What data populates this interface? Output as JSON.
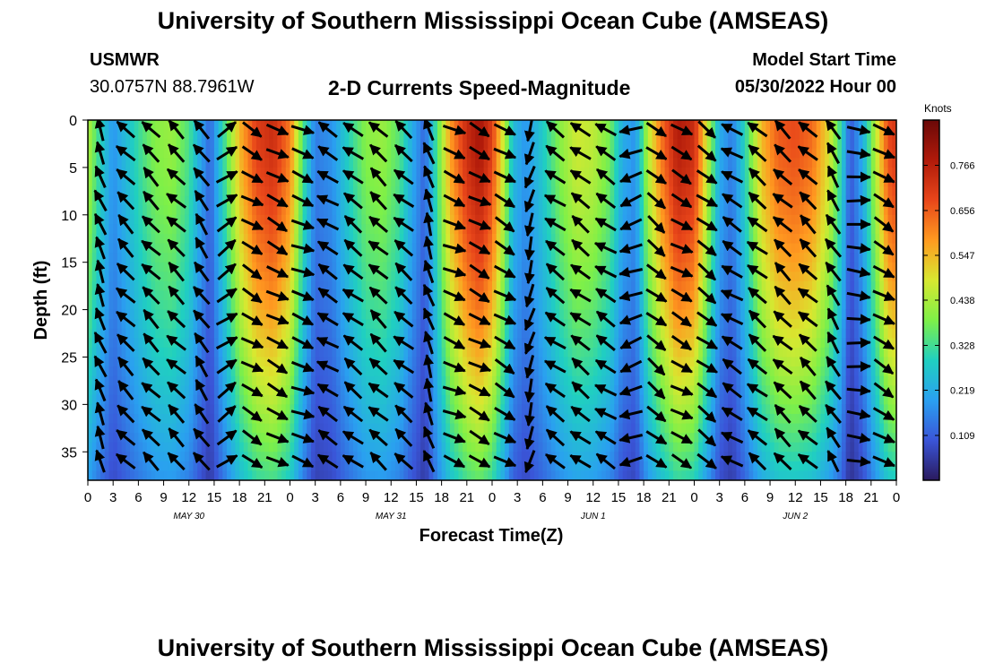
{
  "page": {
    "title": "University of Southern Mississippi Ocean Cube (AMSEAS)",
    "footer_title": "University of Southern Mississippi Ocean Cube (AMSEAS)",
    "station": "USMWR",
    "coords": "30.0757N  88.7961W",
    "subtitle": "2-D Currents Speed-Magnitude",
    "model_start_label": "Model Start Time",
    "model_start_value": "05/30/2022 Hour 00"
  },
  "colors": {
    "scale": [
      "#2a1a5e",
      "#3a55d8",
      "#2aa0f0",
      "#20d0c0",
      "#7ef048",
      "#d8e830",
      "#ff9a20",
      "#e8461a",
      "#b01a0a",
      "#6a0808"
    ]
  },
  "chart_data": {
    "type": "heatmap",
    "title": "2-D Currents Speed-Magnitude",
    "xlabel": "Forecast Time(Z)",
    "ylabel": "Depth (ft)",
    "units": "Knots",
    "xlim_hours": [
      0,
      96
    ],
    "ylim_ft": [
      0,
      38
    ],
    "x_tick_labels": [
      "0",
      "3",
      "6",
      "9",
      "12",
      "15",
      "18",
      "21",
      "0",
      "3",
      "6",
      "9",
      "12",
      "15",
      "18",
      "21",
      "0",
      "3",
      "6",
      "9",
      "12",
      "15",
      "18",
      "21",
      "0",
      "3",
      "6",
      "9",
      "12",
      "15",
      "18",
      "21",
      "0"
    ],
    "y_ticks": [
      0,
      5,
      10,
      15,
      20,
      25,
      30,
      35
    ],
    "date_labels": [
      {
        "label": "MAY 30",
        "hour": 12
      },
      {
        "label": "MAY 31",
        "hour": 36
      },
      {
        "label": "JUN 1",
        "hour": 60
      },
      {
        "label": "JUN 2",
        "hour": 84
      }
    ],
    "colorbar_ticks": [
      "0.766",
      "0.656",
      "0.547",
      "0.438",
      "0.328",
      "0.219",
      "0.109"
    ],
    "colorbar_values": [
      0.766,
      0.656,
      0.547,
      0.438,
      0.328,
      0.219,
      0.109
    ],
    "colorbar_range": [
      0.0,
      0.876
    ],
    "surface_speed_by_hour": [
      [
        0,
        0.45
      ],
      [
        1.5,
        0.3
      ],
      [
        3,
        0.18
      ],
      [
        4.5,
        0.25
      ],
      [
        6,
        0.32
      ],
      [
        8,
        0.4
      ],
      [
        10,
        0.42
      ],
      [
        12,
        0.34
      ],
      [
        13.5,
        0.2
      ],
      [
        14.5,
        0.12
      ],
      [
        16,
        0.3
      ],
      [
        18,
        0.55
      ],
      [
        20,
        0.7
      ],
      [
        22,
        0.74
      ],
      [
        24,
        0.62
      ],
      [
        25.5,
        0.35
      ],
      [
        27,
        0.15
      ],
      [
        29,
        0.18
      ],
      [
        31,
        0.3
      ],
      [
        33,
        0.4
      ],
      [
        35,
        0.42
      ],
      [
        37,
        0.35
      ],
      [
        38.5,
        0.22
      ],
      [
        40,
        0.12
      ],
      [
        41.5,
        0.35
      ],
      [
        43,
        0.58
      ],
      [
        45,
        0.74
      ],
      [
        46.5,
        0.8
      ],
      [
        48,
        0.7
      ],
      [
        49.5,
        0.45
      ],
      [
        50.5,
        0.25
      ],
      [
        52,
        0.18
      ],
      [
        54,
        0.28
      ],
      [
        56,
        0.4
      ],
      [
        58,
        0.48
      ],
      [
        60,
        0.46
      ],
      [
        62,
        0.38
      ],
      [
        63.5,
        0.22
      ],
      [
        65,
        0.18
      ],
      [
        66.5,
        0.45
      ],
      [
        68,
        0.62
      ],
      [
        70,
        0.78
      ],
      [
        72,
        0.74
      ],
      [
        73.5,
        0.48
      ],
      [
        75,
        0.22
      ],
      [
        76.5,
        0.15
      ],
      [
        78,
        0.3
      ],
      [
        80,
        0.55
      ],
      [
        82,
        0.66
      ],
      [
        84,
        0.68
      ],
      [
        86,
        0.64
      ],
      [
        88,
        0.5
      ],
      [
        89.5,
        0.3
      ],
      [
        90.5,
        0.1
      ],
      [
        92,
        0.22
      ],
      [
        93.5,
        0.45
      ],
      [
        95,
        0.68
      ],
      [
        96,
        0.72
      ]
    ],
    "depth_decay_by_hour": [
      [
        0,
        0.55
      ],
      [
        24,
        0.55
      ],
      [
        48,
        0.55
      ],
      [
        72,
        0.6
      ],
      [
        96,
        0.6
      ]
    ],
    "current_direction_deg_by_hour": [
      [
        0,
        335
      ],
      [
        2,
        340
      ],
      [
        4,
        320
      ],
      [
        6,
        300
      ],
      [
        8,
        320
      ],
      [
        10,
        315
      ],
      [
        12,
        310
      ],
      [
        14,
        330
      ],
      [
        15,
        350
      ],
      [
        18,
        120
      ],
      [
        21,
        120
      ],
      [
        24,
        115
      ],
      [
        26,
        110
      ],
      [
        28,
        300
      ],
      [
        30,
        305
      ],
      [
        33,
        310
      ],
      [
        36,
        315
      ],
      [
        40,
        300
      ],
      [
        42,
        110
      ],
      [
        45,
        115
      ],
      [
        48,
        120
      ],
      [
        51,
        120
      ],
      [
        52,
        160
      ],
      [
        54,
        300
      ],
      [
        57,
        310
      ],
      [
        60,
        305
      ],
      [
        63,
        300
      ],
      [
        66,
        200
      ],
      [
        67,
        130
      ],
      [
        70,
        120
      ],
      [
        72,
        115
      ],
      [
        74,
        130
      ],
      [
        76,
        300
      ],
      [
        80,
        310
      ],
      [
        84,
        315
      ],
      [
        88,
        310
      ],
      [
        90,
        20
      ],
      [
        92,
        120
      ],
      [
        96,
        120
      ]
    ]
  }
}
